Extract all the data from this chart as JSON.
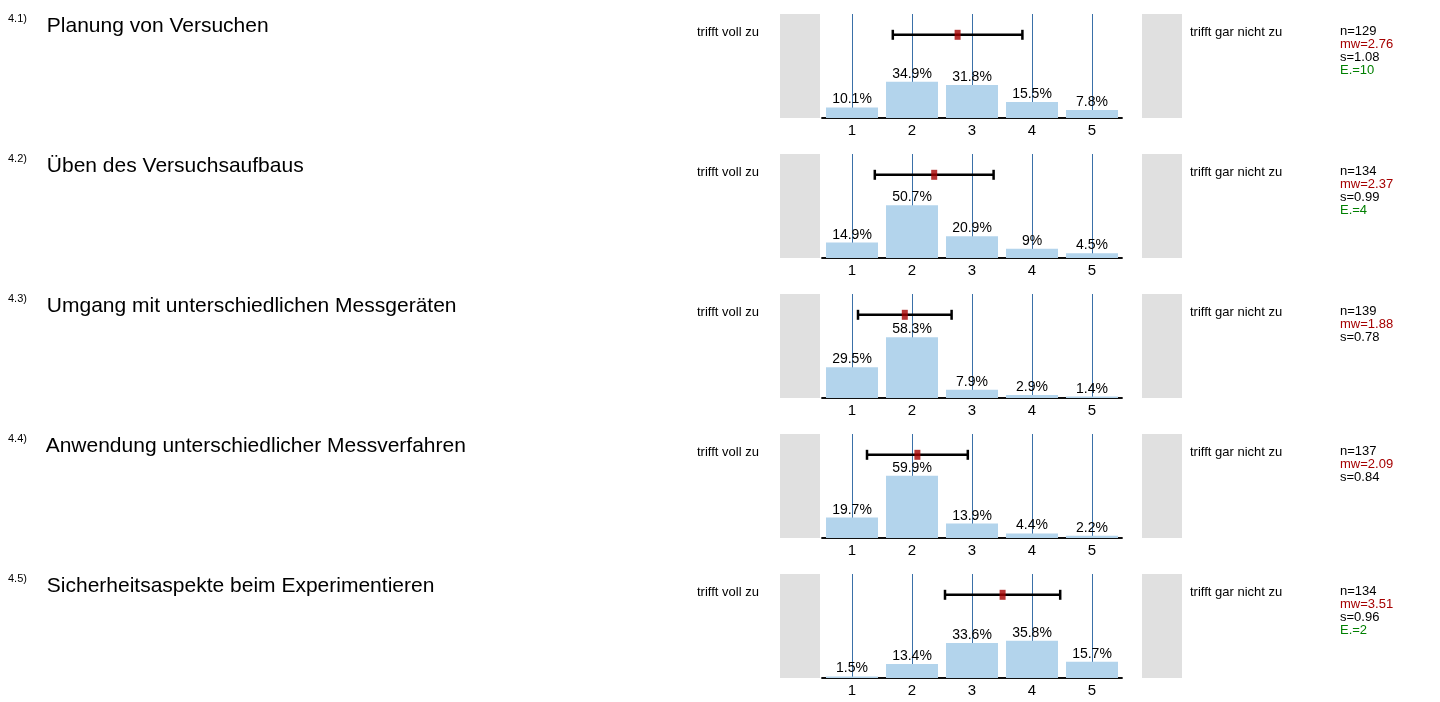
{
  "chart_data": [
    {
      "type": "bar",
      "title": "$^{4.1)}$ Planung von Versuchen",
      "xlim": [
        0.5,
        5.5
      ],
      "xticks": [
        1,
        2,
        3,
        4,
        5
      ],
      "ylim": [
        0,
        100
      ],
      "grid": "x",
      "marker": "square",
      "annotations": [
        "trifft voll zu",
        "trifft gar nicht zu",
        "n=129",
        "mw=2.76",
        "s=1.08",
        "E.=10"
      ],
      "series": [
        {
          "type": "bar",
          "x": [
            1,
            2,
            3,
            4,
            5
          ],
          "color": "#b3d4ec",
          "values": [
            10.1,
            34.9,
            31.8,
            15.5,
            7.8
          ],
          "value_labels": [
            "10.1%",
            "34.9%",
            "31.8%",
            "15.5%",
            "7.8%"
          ]
        },
        {
          "type": "scatter",
          "x": [
            2.76
          ],
          "values": [
            80
          ],
          "xerrors": [
            1.08
          ],
          "color": "#a50000"
        }
      ]
    },
    {
      "type": "bar",
      "title": "$^{4.2)}$ Üben des Versuchsaufbaus",
      "xlim": [
        0.5,
        5.5
      ],
      "xticks": [
        1,
        2,
        3,
        4,
        5
      ],
      "ylim": [
        0,
        100
      ],
      "grid": "x",
      "marker": "square",
      "annotations": [
        "trifft voll zu",
        "trifft gar nicht zu",
        "n=134",
        "mw=2.37",
        "s=0.99",
        "E.=4"
      ],
      "series": [
        {
          "type": "bar",
          "x": [
            1,
            2,
            3,
            4,
            5
          ],
          "color": "#b3d4ec",
          "values": [
            14.9,
            50.7,
            20.9,
            9,
            4.5
          ],
          "value_labels": [
            "14.9%",
            "50.7%",
            "20.9%",
            "9%",
            "4.5%"
          ]
        },
        {
          "type": "scatter",
          "x": [
            2.37
          ],
          "values": [
            80
          ],
          "xerrors": [
            0.99
          ],
          "color": "#a50000"
        }
      ]
    },
    {
      "type": "bar",
      "title": "$^{4.3)}$ Umgang mit unterschiedlichen Messgeräten",
      "xlim": [
        0.5,
        5.5
      ],
      "xticks": [
        1,
        2,
        3,
        4,
        5
      ],
      "ylim": [
        0,
        100
      ],
      "grid": "x",
      "marker": "square",
      "annotations": [
        "trifft voll zu",
        "trifft gar nicht zu",
        "n=139",
        "mw=1.88",
        "s=0.78"
      ],
      "series": [
        {
          "type": "bar",
          "x": [
            1,
            2,
            3,
            4,
            5
          ],
          "color": "#b3d4ec",
          "values": [
            29.5,
            58.3,
            7.9,
            2.9,
            1.4
          ],
          "value_labels": [
            "29.5%",
            "58.3%",
            "7.9%",
            "2.9%",
            "1.4%"
          ]
        },
        {
          "type": "scatter",
          "x": [
            1.88
          ],
          "values": [
            80
          ],
          "xerrors": [
            0.78
          ],
          "color": "#a50000"
        }
      ]
    },
    {
      "type": "bar",
      "title": "$^{4.4)}$ Anwendung unterschiedlicher Messverfahren",
      "xlim": [
        0.5,
        5.5
      ],
      "xticks": [
        1,
        2,
        3,
        4,
        5
      ],
      "ylim": [
        0,
        100
      ],
      "grid": "x",
      "marker": "square",
      "annotations": [
        "trifft voll zu",
        "trifft gar nicht zu",
        "n=137",
        "mw=2.09",
        "s=0.84"
      ],
      "series": [
        {
          "type": "bar",
          "x": [
            1,
            2,
            3,
            4,
            5
          ],
          "color": "#b3d4ec",
          "values": [
            19.7,
            59.9,
            13.9,
            4.4,
            2.2
          ],
          "value_labels": [
            "19.7%",
            "59.9%",
            "13.9%",
            "4.4%",
            "2.2%"
          ]
        },
        {
          "type": "scatter",
          "x": [
            2.09
          ],
          "values": [
            80
          ],
          "xerrors": [
            0.84
          ],
          "color": "#a50000"
        }
      ]
    },
    {
      "type": "bar",
      "title": "$^{4.5)}$ Sicherheitsaspekte beim Experimentieren",
      "xlim": [
        0.5,
        5.5
      ],
      "xticks": [
        1,
        2,
        3,
        4,
        5
      ],
      "ylim": [
        0,
        100
      ],
      "grid": "x",
      "marker": "square",
      "annotations": [
        "trifft voll zu",
        "trifft gar nicht zu",
        "n=134",
        "mw=3.51",
        "s=0.96",
        "E.=2"
      ],
      "series": [
        {
          "type": "bar",
          "x": [
            1,
            2,
            3,
            4,
            5
          ],
          "color": "#b3d4ec",
          "values": [
            1.5,
            13.4,
            33.6,
            35.8,
            15.7
          ],
          "value_labels": [
            "1.5%",
            "13.4%",
            "33.6%",
            "35.8%",
            "15.7%"
          ]
        },
        {
          "type": "scatter",
          "x": [
            3.51
          ],
          "values": [
            80
          ],
          "xerrors": [
            0.96
          ],
          "color": "#a50000"
        }
      ]
    }
  ]
}
